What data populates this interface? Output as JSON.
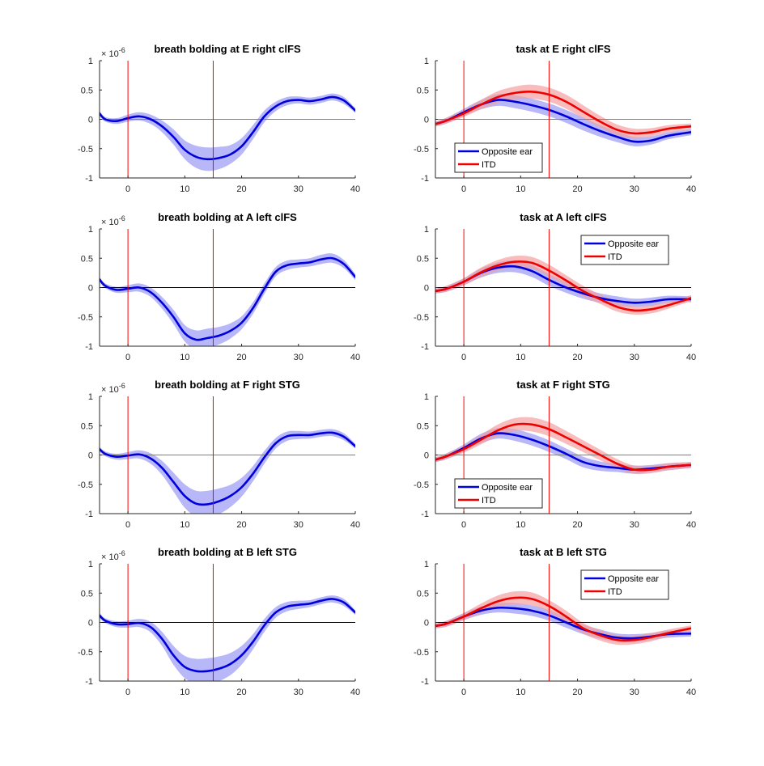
{
  "chart_data": [
    {
      "type": "line",
      "title": "breath bolding at E right clFS",
      "xlim": [
        -5,
        40
      ],
      "ylim": [
        -1,
        1
      ],
      "xticks": [
        "0",
        "10",
        "20",
        "30",
        "40"
      ],
      "yticks": [
        "1",
        "0.5",
        "0",
        "-0.5",
        "-1"
      ],
      "yexponent": "× 10",
      "yexponent_power": "-6",
      "vlines": [
        0,
        15
      ],
      "vline_color": "#ff0000",
      "zero_line_color": "#808080",
      "legend": null,
      "series": [
        {
          "color": "#0000dd",
          "band_color": "#9a9af5",
          "x": [
            -5,
            -4,
            -2,
            0,
            2,
            4,
            6,
            8,
            10,
            12,
            14,
            16,
            18,
            20,
            22,
            24,
            26,
            28,
            30,
            32,
            34,
            36,
            38,
            40
          ],
          "values": [
            0.1,
            0.0,
            -0.03,
            0.02,
            0.05,
            0.0,
            -0.12,
            -0.3,
            -0.52,
            -0.64,
            -0.68,
            -0.66,
            -0.6,
            -0.46,
            -0.22,
            0.05,
            0.22,
            0.31,
            0.33,
            0.31,
            0.34,
            0.38,
            0.32,
            0.15
          ],
          "band": [
            0.04,
            0.04,
            0.05,
            0.06,
            0.07,
            0.08,
            0.1,
            0.13,
            0.16,
            0.19,
            0.2,
            0.19,
            0.16,
            0.14,
            0.12,
            0.1,
            0.08,
            0.07,
            0.06,
            0.06,
            0.06,
            0.06,
            0.06,
            0.04
          ]
        }
      ]
    },
    {
      "type": "line",
      "title": "task at E right clFS",
      "xlim": [
        -5,
        40
      ],
      "ylim": [
        -1,
        1
      ],
      "xticks": [
        "0",
        "10",
        "20",
        "30",
        "40"
      ],
      "yticks": [
        "1",
        "0.5",
        "0",
        "-0.5",
        "-1"
      ],
      "vlines": [
        0,
        15
      ],
      "vline_color": "#ff0000",
      "zero_line_color": "#808080",
      "legend": {
        "position": "bottom-left",
        "entries": [
          "Opposite ear",
          "ITD"
        ]
      },
      "series": [
        {
          "name": "Opposite ear",
          "color": "#0000dd",
          "band_color": "#9a9af5",
          "x": [
            -5,
            -3,
            0,
            3,
            6,
            9,
            12,
            15,
            18,
            21,
            24,
            27,
            30,
            33,
            36,
            40
          ],
          "values": [
            -0.08,
            -0.02,
            0.12,
            0.25,
            0.33,
            0.3,
            0.24,
            0.16,
            0.05,
            -0.08,
            -0.2,
            -0.3,
            -0.38,
            -0.36,
            -0.28,
            -0.22
          ],
          "band": [
            0.04,
            0.05,
            0.06,
            0.08,
            0.1,
            0.11,
            0.11,
            0.11,
            0.11,
            0.11,
            0.1,
            0.09,
            0.08,
            0.07,
            0.06,
            0.05
          ]
        },
        {
          "name": "ITD",
          "color": "#ee0000",
          "band_color": "#f5a0a0",
          "x": [
            -5,
            -3,
            0,
            3,
            6,
            9,
            12,
            15,
            18,
            21,
            24,
            27,
            30,
            33,
            36,
            40
          ],
          "values": [
            -0.08,
            -0.02,
            0.1,
            0.25,
            0.38,
            0.45,
            0.47,
            0.42,
            0.3,
            0.13,
            -0.04,
            -0.18,
            -0.24,
            -0.22,
            -0.16,
            -0.12
          ],
          "band": [
            0.04,
            0.05,
            0.06,
            0.08,
            0.1,
            0.11,
            0.12,
            0.12,
            0.12,
            0.11,
            0.1,
            0.09,
            0.08,
            0.07,
            0.06,
            0.05
          ]
        }
      ]
    },
    {
      "type": "line",
      "title": "breath bolding at A left clFS",
      "xlim": [
        -5,
        40
      ],
      "ylim": [
        -1,
        1
      ],
      "xticks": [
        "0",
        "10",
        "20",
        "30",
        "40"
      ],
      "yticks": [
        "1",
        "0.5",
        "0",
        "-0.5",
        "-1"
      ],
      "yexponent": "× 10",
      "yexponent_power": "-6",
      "vlines": [
        0,
        15
      ],
      "vline_color": "#ff0000",
      "zero_line_color": "#000000",
      "legend": null,
      "series": [
        {
          "color": "#0000dd",
          "band_color": "#9a9af5",
          "x": [
            -5,
            -4,
            -2,
            0,
            2,
            4,
            6,
            8,
            10,
            12,
            14,
            16,
            18,
            20,
            22,
            24,
            26,
            28,
            30,
            32,
            34,
            36,
            38,
            40
          ],
          "values": [
            0.14,
            0.03,
            -0.04,
            -0.02,
            0.0,
            -0.08,
            -0.26,
            -0.5,
            -0.78,
            -0.89,
            -0.86,
            -0.82,
            -0.74,
            -0.6,
            -0.35,
            -0.02,
            0.27,
            0.38,
            0.41,
            0.43,
            0.48,
            0.5,
            0.4,
            0.18
          ],
          "band": [
            0.04,
            0.04,
            0.05,
            0.06,
            0.07,
            0.08,
            0.1,
            0.12,
            0.14,
            0.16,
            0.16,
            0.15,
            0.13,
            0.11,
            0.1,
            0.09,
            0.08,
            0.08,
            0.07,
            0.07,
            0.08,
            0.08,
            0.07,
            0.05
          ]
        }
      ]
    },
    {
      "type": "line",
      "title": "task at A left clFS",
      "xlim": [
        -5,
        40
      ],
      "ylim": [
        -1,
        1
      ],
      "xticks": [
        "0",
        "10",
        "20",
        "30",
        "40"
      ],
      "yticks": [
        "1",
        "0.5",
        "0",
        "-0.5",
        "-1"
      ],
      "vlines": [
        0,
        15
      ],
      "vline_color": "#ff0000",
      "zero_line_color": "#000000",
      "legend": {
        "position": "top-right",
        "entries": [
          "Opposite ear",
          "ITD"
        ]
      },
      "series": [
        {
          "name": "Opposite ear",
          "color": "#0000dd",
          "band_color": "#9a9af5",
          "x": [
            -5,
            -3,
            0,
            3,
            6,
            9,
            12,
            15,
            18,
            21,
            24,
            27,
            30,
            33,
            36,
            40
          ],
          "values": [
            -0.06,
            -0.02,
            0.1,
            0.25,
            0.34,
            0.36,
            0.28,
            0.13,
            0.0,
            -0.1,
            -0.18,
            -0.23,
            -0.26,
            -0.24,
            -0.2,
            -0.2
          ],
          "band": [
            0.04,
            0.05,
            0.06,
            0.08,
            0.09,
            0.1,
            0.1,
            0.1,
            0.09,
            0.09,
            0.08,
            0.08,
            0.07,
            0.07,
            0.06,
            0.05
          ]
        },
        {
          "name": "ITD",
          "color": "#ee0000",
          "band_color": "#f5a0a0",
          "x": [
            -5,
            -3,
            0,
            3,
            6,
            9,
            12,
            15,
            18,
            21,
            24,
            27,
            30,
            33,
            36,
            40
          ],
          "values": [
            -0.06,
            -0.02,
            0.1,
            0.26,
            0.38,
            0.44,
            0.42,
            0.29,
            0.12,
            -0.06,
            -0.2,
            -0.33,
            -0.39,
            -0.37,
            -0.3,
            -0.18
          ],
          "band": [
            0.04,
            0.05,
            0.06,
            0.08,
            0.09,
            0.1,
            0.1,
            0.1,
            0.09,
            0.09,
            0.08,
            0.08,
            0.07,
            0.07,
            0.06,
            0.05
          ]
        }
      ]
    },
    {
      "type": "line",
      "title": "breath bolding at F right STG",
      "xlim": [
        -5,
        40
      ],
      "ylim": [
        -1,
        1
      ],
      "xticks": [
        "0",
        "10",
        "20",
        "30",
        "40"
      ],
      "yticks": [
        "1",
        "0.5",
        "0",
        "-0.5",
        "-1"
      ],
      "yexponent": "× 10",
      "yexponent_power": "-6",
      "vlines": [
        0,
        15
      ],
      "vline_color": "#ff0000",
      "zero_line_color": "#808080",
      "legend": null,
      "series": [
        {
          "color": "#0000dd",
          "band_color": "#9a9af5",
          "x": [
            -5,
            -4,
            -2,
            0,
            2,
            4,
            6,
            8,
            10,
            12,
            14,
            16,
            18,
            20,
            22,
            24,
            26,
            28,
            30,
            32,
            34,
            36,
            38,
            40
          ],
          "values": [
            0.1,
            0.02,
            -0.03,
            -0.01,
            0.01,
            -0.06,
            -0.22,
            -0.46,
            -0.7,
            -0.83,
            -0.84,
            -0.79,
            -0.7,
            -0.55,
            -0.32,
            -0.04,
            0.2,
            0.32,
            0.34,
            0.34,
            0.37,
            0.38,
            0.31,
            0.15
          ],
          "band": [
            0.04,
            0.04,
            0.05,
            0.06,
            0.07,
            0.09,
            0.12,
            0.16,
            0.2,
            0.22,
            0.23,
            0.22,
            0.19,
            0.16,
            0.13,
            0.11,
            0.09,
            0.08,
            0.07,
            0.06,
            0.06,
            0.06,
            0.06,
            0.04
          ]
        }
      ]
    },
    {
      "type": "line",
      "title": "task at F right STG",
      "xlim": [
        -5,
        40
      ],
      "ylim": [
        -1,
        1
      ],
      "xticks": [
        "0",
        "10",
        "20",
        "30",
        "40"
      ],
      "yticks": [
        "1",
        "0.5",
        "0",
        "-0.5",
        "-1"
      ],
      "vlines": [
        0,
        15
      ],
      "vline_color": "#ff0000",
      "zero_line_color": "#808080",
      "legend": {
        "position": "bottom-left",
        "entries": [
          "Opposite ear",
          "ITD"
        ]
      },
      "series": [
        {
          "name": "Opposite ear",
          "color": "#0000dd",
          "band_color": "#9a9af5",
          "x": [
            -5,
            -3,
            0,
            3,
            6,
            9,
            12,
            15,
            18,
            21,
            24,
            27,
            30,
            33,
            36,
            40
          ],
          "values": [
            -0.08,
            -0.02,
            0.12,
            0.28,
            0.37,
            0.34,
            0.26,
            0.15,
            0.02,
            -0.12,
            -0.19,
            -0.22,
            -0.25,
            -0.23,
            -0.2,
            -0.17
          ],
          "band": [
            0.04,
            0.05,
            0.06,
            0.08,
            0.09,
            0.1,
            0.1,
            0.1,
            0.09,
            0.09,
            0.08,
            0.07,
            0.07,
            0.06,
            0.06,
            0.05
          ]
        },
        {
          "name": "ITD",
          "color": "#ee0000",
          "band_color": "#f5a0a0",
          "x": [
            -5,
            -3,
            0,
            3,
            6,
            9,
            12,
            15,
            18,
            21,
            24,
            27,
            30,
            33,
            36,
            40
          ],
          "values": [
            -0.08,
            -0.02,
            0.1,
            0.26,
            0.42,
            0.52,
            0.52,
            0.44,
            0.3,
            0.15,
            0.0,
            -0.15,
            -0.25,
            -0.25,
            -0.2,
            -0.17
          ],
          "band": [
            0.04,
            0.05,
            0.06,
            0.08,
            0.1,
            0.11,
            0.12,
            0.12,
            0.11,
            0.1,
            0.09,
            0.08,
            0.07,
            0.06,
            0.06,
            0.05
          ]
        }
      ]
    },
    {
      "type": "line",
      "title": "breath bolding at B left STG",
      "xlim": [
        -5,
        40
      ],
      "ylim": [
        -1,
        1
      ],
      "xticks": [
        "0",
        "10",
        "20",
        "30",
        "40"
      ],
      "yticks": [
        "1",
        "0.5",
        "0",
        "-0.5",
        "-1"
      ],
      "yexponent": "× 10",
      "yexponent_power": "-6",
      "vlines": [
        0,
        15
      ],
      "vline_color": "#ff0000",
      "zero_line_color": "#000000",
      "legend": null,
      "series": [
        {
          "color": "#0000dd",
          "band_color": "#9a9af5",
          "x": [
            -5,
            -4,
            -2,
            0,
            2,
            4,
            6,
            8,
            10,
            12,
            14,
            16,
            18,
            20,
            22,
            24,
            26,
            28,
            30,
            32,
            34,
            36,
            38,
            40
          ],
          "values": [
            0.12,
            0.03,
            -0.03,
            -0.03,
            -0.01,
            -0.08,
            -0.28,
            -0.56,
            -0.76,
            -0.83,
            -0.83,
            -0.79,
            -0.71,
            -0.56,
            -0.33,
            -0.05,
            0.17,
            0.27,
            0.3,
            0.32,
            0.37,
            0.4,
            0.34,
            0.17
          ],
          "band": [
            0.04,
            0.04,
            0.05,
            0.06,
            0.07,
            0.09,
            0.12,
            0.16,
            0.19,
            0.21,
            0.22,
            0.21,
            0.19,
            0.16,
            0.13,
            0.11,
            0.09,
            0.08,
            0.07,
            0.06,
            0.06,
            0.06,
            0.06,
            0.04
          ]
        }
      ]
    },
    {
      "type": "line",
      "title": "task at B left STG",
      "xlim": [
        -5,
        40
      ],
      "ylim": [
        -1,
        1
      ],
      "xticks": [
        "0",
        "10",
        "20",
        "30",
        "40"
      ],
      "yticks": [
        "1",
        "0.5",
        "0",
        "-0.5",
        "-1"
      ],
      "vlines": [
        0,
        15
      ],
      "vline_color": "#ff0000",
      "zero_line_color": "#000000",
      "legend": {
        "position": "top-right",
        "entries": [
          "Opposite ear",
          "ITD"
        ]
      },
      "series": [
        {
          "name": "Opposite ear",
          "color": "#0000dd",
          "band_color": "#9a9af5",
          "x": [
            -5,
            -3,
            0,
            3,
            6,
            9,
            12,
            15,
            18,
            21,
            24,
            27,
            30,
            33,
            36,
            40
          ],
          "values": [
            -0.06,
            -0.02,
            0.1,
            0.2,
            0.25,
            0.24,
            0.2,
            0.12,
            0.0,
            -0.12,
            -0.2,
            -0.26,
            -0.27,
            -0.24,
            -0.2,
            -0.19
          ],
          "band": [
            0.04,
            0.05,
            0.06,
            0.07,
            0.08,
            0.09,
            0.09,
            0.09,
            0.09,
            0.08,
            0.08,
            0.07,
            0.07,
            0.06,
            0.06,
            0.05
          ]
        },
        {
          "name": "ITD",
          "color": "#ee0000",
          "band_color": "#f5a0a0",
          "x": [
            -5,
            -3,
            0,
            3,
            6,
            9,
            12,
            15,
            18,
            21,
            24,
            27,
            30,
            33,
            36,
            40
          ],
          "values": [
            -0.06,
            -0.02,
            0.1,
            0.24,
            0.36,
            0.42,
            0.4,
            0.28,
            0.1,
            -0.1,
            -0.22,
            -0.3,
            -0.3,
            -0.25,
            -0.18,
            -0.1
          ],
          "band": [
            0.04,
            0.05,
            0.06,
            0.08,
            0.1,
            0.11,
            0.11,
            0.1,
            0.1,
            0.09,
            0.09,
            0.08,
            0.07,
            0.07,
            0.06,
            0.05
          ]
        }
      ]
    }
  ]
}
